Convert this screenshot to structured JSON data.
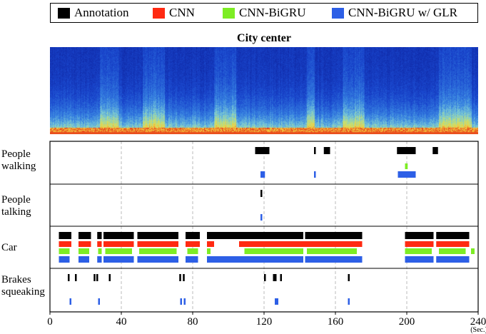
{
  "legend": {
    "items": [
      {
        "label": "Annotation",
        "color": "#000000"
      },
      {
        "label": "CNN",
        "color": "#ff2a12"
      },
      {
        "label": "CNN-BiGRU",
        "color": "#7ded24"
      },
      {
        "label": "CNN-BiGRU w/ GLR",
        "color": "#2d5fe6"
      }
    ]
  },
  "title": "City center",
  "chart_data": {
    "type": "timeline",
    "title": "City center",
    "xlabel": "",
    "x_unit": "(Sec.)",
    "xlim": [
      0,
      240
    ],
    "xticks": [
      0,
      40,
      80,
      120,
      160,
      200,
      240
    ],
    "grid": "dashed vertical at ticks",
    "series": [
      "Annotation",
      "CNN",
      "CNN-BiGRU",
      "CNN-BiGRU w/ GLR"
    ],
    "rows": [
      {
        "label": "People walking",
        "label_lines": [
          "People",
          "walking"
        ],
        "tracks": {
          "Annotation": [
            [
              115,
              123
            ],
            [
              148,
              149
            ],
            [
              153.5,
              157
            ],
            [
              194.5,
              205
            ],
            [
              214.5,
              217.5
            ]
          ],
          "CNN": [],
          "CNN-BiGRU": [
            [
              199,
              200.5
            ]
          ],
          "CNN-BiGRU w/ GLR": [
            [
              118,
              120.5
            ],
            [
              148,
              149
            ],
            [
              195,
              205
            ]
          ]
        }
      },
      {
        "label": "People talking",
        "label_lines": [
          "People",
          "talking"
        ],
        "tracks": {
          "Annotation": [
            [
              118,
              119
            ]
          ],
          "CNN": [],
          "CNN-BiGRU": [],
          "CNN-BiGRU w/ GLR": [
            [
              118,
              119
            ]
          ]
        }
      },
      {
        "label": "Car",
        "label_lines": [
          "Car"
        ],
        "tracks": {
          "Annotation": [
            [
              5,
              12
            ],
            [
              16,
              23
            ],
            [
              26.5,
              29
            ],
            [
              30,
              47
            ],
            [
              49,
              72
            ],
            [
              76,
              84
            ],
            [
              88,
              142
            ],
            [
              143,
              175
            ],
            [
              199,
              215
            ],
            [
              216.5,
              235
            ]
          ],
          "CNN": [
            [
              5,
              12
            ],
            [
              16,
              23
            ],
            [
              26.5,
              29
            ],
            [
              30,
              47
            ],
            [
              49,
              72
            ],
            [
              76,
              84
            ],
            [
              88,
              92
            ],
            [
              106,
              175
            ],
            [
              199,
              215
            ],
            [
              216.5,
              235
            ]
          ],
          "CNN-BiGRU": [
            [
              5,
              11
            ],
            [
              16,
              22
            ],
            [
              27,
              29
            ],
            [
              31,
              46
            ],
            [
              50,
              71
            ],
            [
              77,
              83
            ],
            [
              88,
              90
            ],
            [
              109,
              142
            ],
            [
              144,
              172
            ],
            [
              199,
              214
            ],
            [
              218,
              233
            ],
            [
              236,
              238
            ]
          ],
          "CNN-BiGRU w/ GLR": [
            [
              5,
              11
            ],
            [
              16,
              22
            ],
            [
              26.5,
              29
            ],
            [
              30,
              47
            ],
            [
              49,
              72
            ],
            [
              76,
              83
            ],
            [
              88,
              142
            ],
            [
              143,
              175
            ],
            [
              199,
              215
            ],
            [
              216.5,
              235
            ]
          ]
        }
      },
      {
        "label": "Brakes squeaking",
        "label_lines": [
          "Brakes",
          "squeaking"
        ],
        "tracks": {
          "Annotation": [
            [
              10,
              11
            ],
            [
              14,
              15
            ],
            [
              24.5,
              25.5
            ],
            [
              26,
              27
            ],
            [
              33,
              34
            ],
            [
              72.5,
              73.5
            ],
            [
              74.5,
              75.5
            ],
            [
              120,
              121
            ],
            [
              125,
              127
            ],
            [
              129,
              130
            ],
            [
              167,
              168
            ]
          ],
          "CNN": [],
          "CNN-BiGRU": [],
          "CNN-BiGRU w/ GLR": [
            [
              11,
              12
            ],
            [
              27,
              28
            ],
            [
              73,
              74
            ],
            [
              75,
              76
            ],
            [
              126,
              128
            ],
            [
              167,
              168
            ]
          ]
        }
      }
    ],
    "spectrogram": {
      "description_colors": [
        "#0a1f9c",
        "#2a6ad8",
        "#74c7d6",
        "#e9e06a",
        "#e8331a"
      ]
    }
  }
}
